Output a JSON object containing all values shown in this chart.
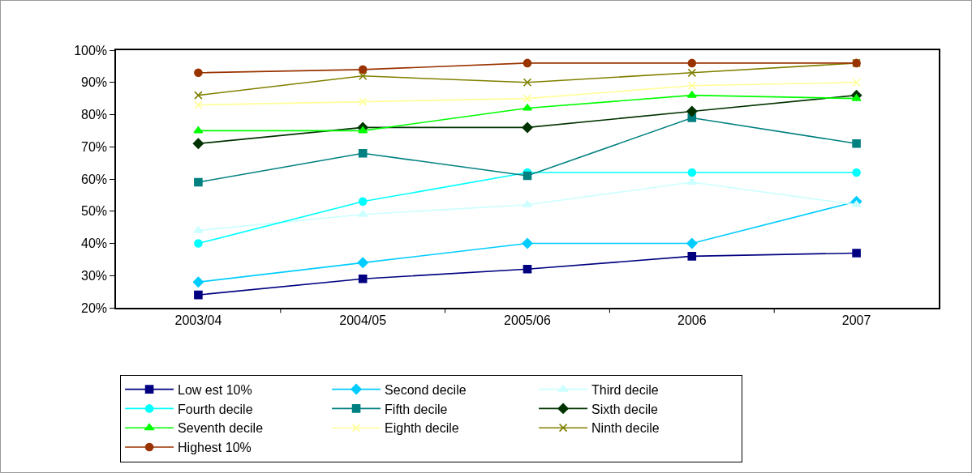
{
  "chart_data": {
    "type": "line",
    "categories": [
      "2003/04",
      "2004/05",
      "2005/06",
      "2006",
      "2007"
    ],
    "series": [
      {
        "name": "Low est 10%",
        "color": "#000080",
        "marker": "square",
        "values": [
          24,
          29,
          32,
          36,
          37
        ]
      },
      {
        "name": "Second decile",
        "color": "#00ccff",
        "marker": "diamond",
        "values": [
          28,
          34,
          40,
          40,
          53
        ]
      },
      {
        "name": "Third decile",
        "color": "#ccffff",
        "marker": "triangle",
        "values": [
          44,
          49,
          52,
          59,
          52
        ]
      },
      {
        "name": "Fourth decile",
        "color": "#00ffff",
        "marker": "circle",
        "values": [
          40,
          53,
          62,
          62,
          62
        ]
      },
      {
        "name": "Fifth decile",
        "color": "#008080",
        "marker": "square",
        "values": [
          59,
          68,
          61,
          79,
          71
        ]
      },
      {
        "name": "Sixth decile",
        "color": "#003300",
        "marker": "diamond",
        "values": [
          71,
          76,
          76,
          81,
          86
        ]
      },
      {
        "name": "Seventh decile",
        "color": "#00ff00",
        "marker": "triangle",
        "values": [
          75,
          75,
          82,
          86,
          85
        ]
      },
      {
        "name": "Eighth decile",
        "color": "#ffff99",
        "marker": "cross",
        "values": [
          83,
          84,
          85,
          89,
          90
        ]
      },
      {
        "name": "Ninth decile",
        "color": "#808000",
        "marker": "cross",
        "values": [
          86,
          92,
          90,
          93,
          96
        ]
      },
      {
        "name": "Highest 10%",
        "color": "#993300",
        "marker": "circle",
        "values": [
          93,
          94,
          96,
          96,
          96
        ]
      }
    ],
    "ylim": [
      20,
      100
    ],
    "yticks": [
      {
        "value": 20,
        "label": "20%"
      },
      {
        "value": 30,
        "label": "30%"
      },
      {
        "value": 40,
        "label": "40%"
      },
      {
        "value": 50,
        "label": "50%"
      },
      {
        "value": 60,
        "label": "60%"
      },
      {
        "value": 70,
        "label": "70%"
      },
      {
        "value": 80,
        "label": "80%"
      },
      {
        "value": 90,
        "label": "90%"
      },
      {
        "value": 100,
        "label": "100%"
      }
    ],
    "grid": false,
    "legend": "bottom",
    "line_style": "solid"
  }
}
